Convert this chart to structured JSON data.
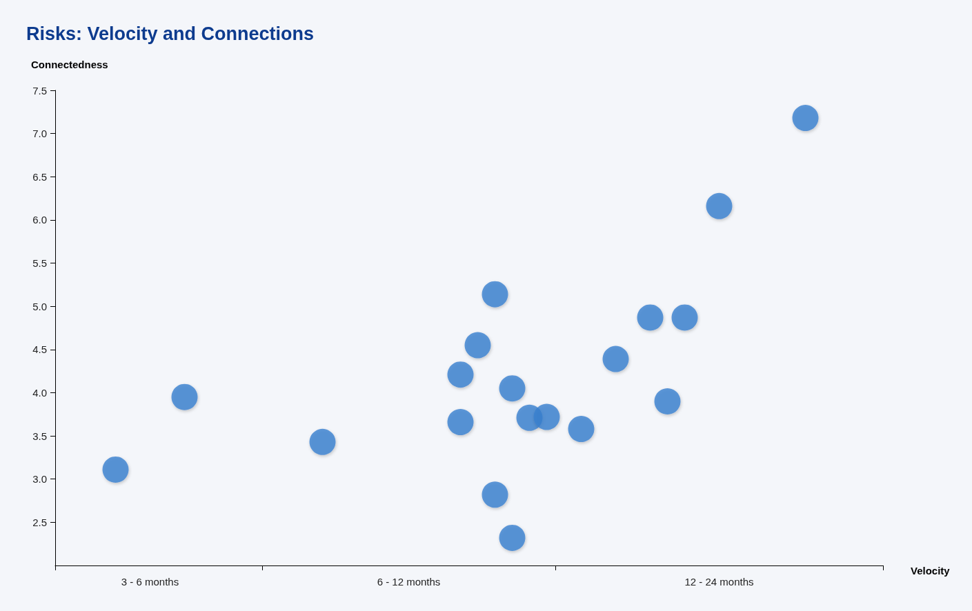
{
  "chart_data": {
    "type": "scatter",
    "title": "Risks: Velocity and Connections",
    "xlabel": "Velocity",
    "ylabel": "Connectedness",
    "categories": [
      null,
      null,
      null,
      null,
      null,
      "3 - 6 months",
      null,
      null,
      null,
      null,
      null,
      null,
      null,
      null,
      null,
      null,
      null,
      null,
      null,
      null,
      "6 - 12 months",
      null,
      null,
      null,
      null,
      null,
      null,
      null,
      null,
      null,
      null,
      null,
      null,
      null,
      null,
      null,
      null,
      null,
      "12 - 24 months",
      null,
      null,
      null,
      null,
      null,
      null,
      null,
      null,
      null
    ],
    "ylim": [
      2,
      7.5
    ],
    "yticks": [
      2.5,
      {
        "value": 3,
        "label": "3.0"
      },
      3.5,
      {
        "value": 4,
        "label": "4.0"
      },
      4.5,
      {
        "value": 5,
        "label": "5.0"
      },
      5.5,
      {
        "value": 6,
        "label": "6.0"
      },
      6.5,
      {
        "value": 7,
        "label": "7.0"
      },
      7.5
    ],
    "series": [
      {
        "color": "#3a7fd0",
        "values": [
          null,
          null,
          null,
          3.11,
          null,
          null,
          null,
          3.95,
          null,
          null,
          null,
          null,
          null,
          null,
          null,
          3.43,
          null,
          null,
          null,
          null,
          null,
          null,
          null,
          4.21,
          4.55,
          5.14,
          4.05,
          3.71,
          3.72,
          null,
          3.58,
          null,
          4.39,
          null,
          4.87,
          3.9,
          4.87,
          null,
          6.16,
          null,
          null,
          null,
          null,
          7.18,
          null,
          null,
          null,
          null
        ]
      },
      {
        "color": "#3a7fd0",
        "values": [
          null,
          null,
          null,
          null,
          null,
          null,
          null,
          null,
          null,
          null,
          null,
          null,
          null,
          null,
          null,
          null,
          null,
          null,
          null,
          null,
          null,
          null,
          null,
          3.66,
          null,
          2.82,
          2.32,
          null,
          null,
          null,
          null,
          null,
          null,
          null,
          null,
          null,
          null,
          null,
          null,
          null,
          null,
          null,
          null,
          null,
          null,
          null,
          null,
          null
        ]
      }
    ],
    "marker": "circle",
    "grid": false
  }
}
